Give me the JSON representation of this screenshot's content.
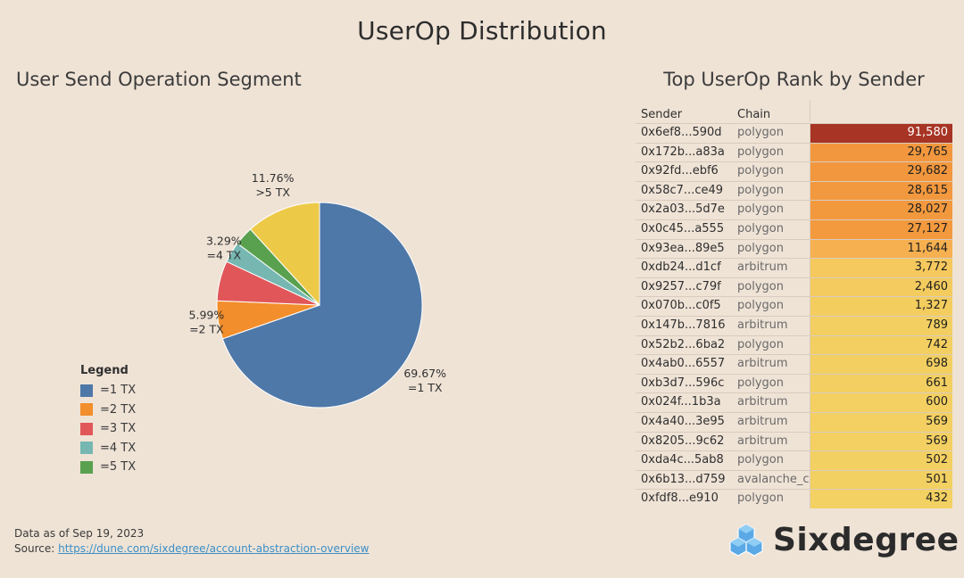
{
  "title": "UserOp Distribution",
  "pie_title": "User Send Operation Segment",
  "table_title": "Top UserOp Rank by Sender",
  "legend": {
    "title": "Legend",
    "items": [
      {
        "label": "=1 TX",
        "color": "#4e78a8"
      },
      {
        "label": "=2 TX",
        "color": "#f28e2b"
      },
      {
        "label": "=3 TX",
        "color": "#e15759"
      },
      {
        "label": "=4 TX",
        "color": "#76b7b2"
      },
      {
        "label": "=5 TX",
        "color": "#59a14f"
      },
      {
        "label": ">5 TX",
        "color": "#edc948"
      }
    ]
  },
  "chart_data": [
    {
      "type": "pie",
      "title": "User Send Operation Segment",
      "categories": [
        "=1 TX",
        "=2 TX",
        "=3 TX",
        "=4 TX",
        "=5 TX",
        ">5 TX"
      ],
      "values": [
        69.67,
        5.99,
        6.3,
        3.29,
        2.99,
        11.76
      ],
      "labels": [
        {
          "pct": "69.67%",
          "name": "=1 TX"
        },
        {
          "pct": "5.99%",
          "name": "=2 TX"
        },
        null,
        {
          "pct": "3.29%",
          "name": "=4 TX"
        },
        null,
        {
          "pct": "11.76%",
          "name": ">5 TX"
        }
      ]
    },
    {
      "type": "table",
      "title": "Top UserOp Rank by Sender",
      "columns": [
        "Sender",
        "Chain",
        ""
      ],
      "rows": [
        {
          "sender": "0x6ef8...590d",
          "chain": "polygon",
          "value": 91580,
          "display": "91,580"
        },
        {
          "sender": "0x172b...a83a",
          "chain": "polygon",
          "value": 29765,
          "display": "29,765"
        },
        {
          "sender": "0x92fd...ebf6",
          "chain": "polygon",
          "value": 29682,
          "display": "29,682"
        },
        {
          "sender": "0x58c7...ce49",
          "chain": "polygon",
          "value": 28615,
          "display": "28,615"
        },
        {
          "sender": "0x2a03...5d7e",
          "chain": "polygon",
          "value": 28027,
          "display": "28,027"
        },
        {
          "sender": "0x0c45...a555",
          "chain": "polygon",
          "value": 27127,
          "display": "27,127"
        },
        {
          "sender": "0x93ea...89e5",
          "chain": "polygon",
          "value": 11644,
          "display": "11,644"
        },
        {
          "sender": "0xdb24...d1cf",
          "chain": "arbitrum",
          "value": 3772,
          "display": "3,772"
        },
        {
          "sender": "0x9257...c79f",
          "chain": "polygon",
          "value": 2460,
          "display": "2,460"
        },
        {
          "sender": "0x070b...c0f5",
          "chain": "polygon",
          "value": 1327,
          "display": "1,327"
        },
        {
          "sender": "0x147b...7816",
          "chain": "arbitrum",
          "value": 789,
          "display": "789"
        },
        {
          "sender": "0x52b2...6ba2",
          "chain": "polygon",
          "value": 742,
          "display": "742"
        },
        {
          "sender": "0x4ab0...6557",
          "chain": "arbitrum",
          "value": 698,
          "display": "698"
        },
        {
          "sender": "0xb3d7...596c",
          "chain": "polygon",
          "value": 661,
          "display": "661"
        },
        {
          "sender": "0x024f...1b3a",
          "chain": "arbitrum",
          "value": 600,
          "display": "600"
        },
        {
          "sender": "0x4a40...3e95",
          "chain": "arbitrum",
          "value": 569,
          "display": "569"
        },
        {
          "sender": "0x8205...9c62",
          "chain": "arbitrum",
          "value": 569,
          "display": "569"
        },
        {
          "sender": "0xda4c...5ab8",
          "chain": "polygon",
          "value": 502,
          "display": "502"
        },
        {
          "sender": "0x6b13...d759",
          "chain": "avalanche_c",
          "value": 501,
          "display": "501"
        },
        {
          "sender": "0xfdf8...e910",
          "chain": "polygon",
          "value": 432,
          "display": "432"
        }
      ]
    }
  ],
  "footer": {
    "data_as_of_label": "Data as of",
    "data_as_of_date": "Sep 19, 2023",
    "source_label": "Source:",
    "source_url": "https://dune.com/sixdegree/account-abstraction-overview"
  },
  "brand": {
    "name": "Sixdegree",
    "logo_icon": "cube-cluster-icon",
    "logo_color": "#5aa9e6"
  }
}
